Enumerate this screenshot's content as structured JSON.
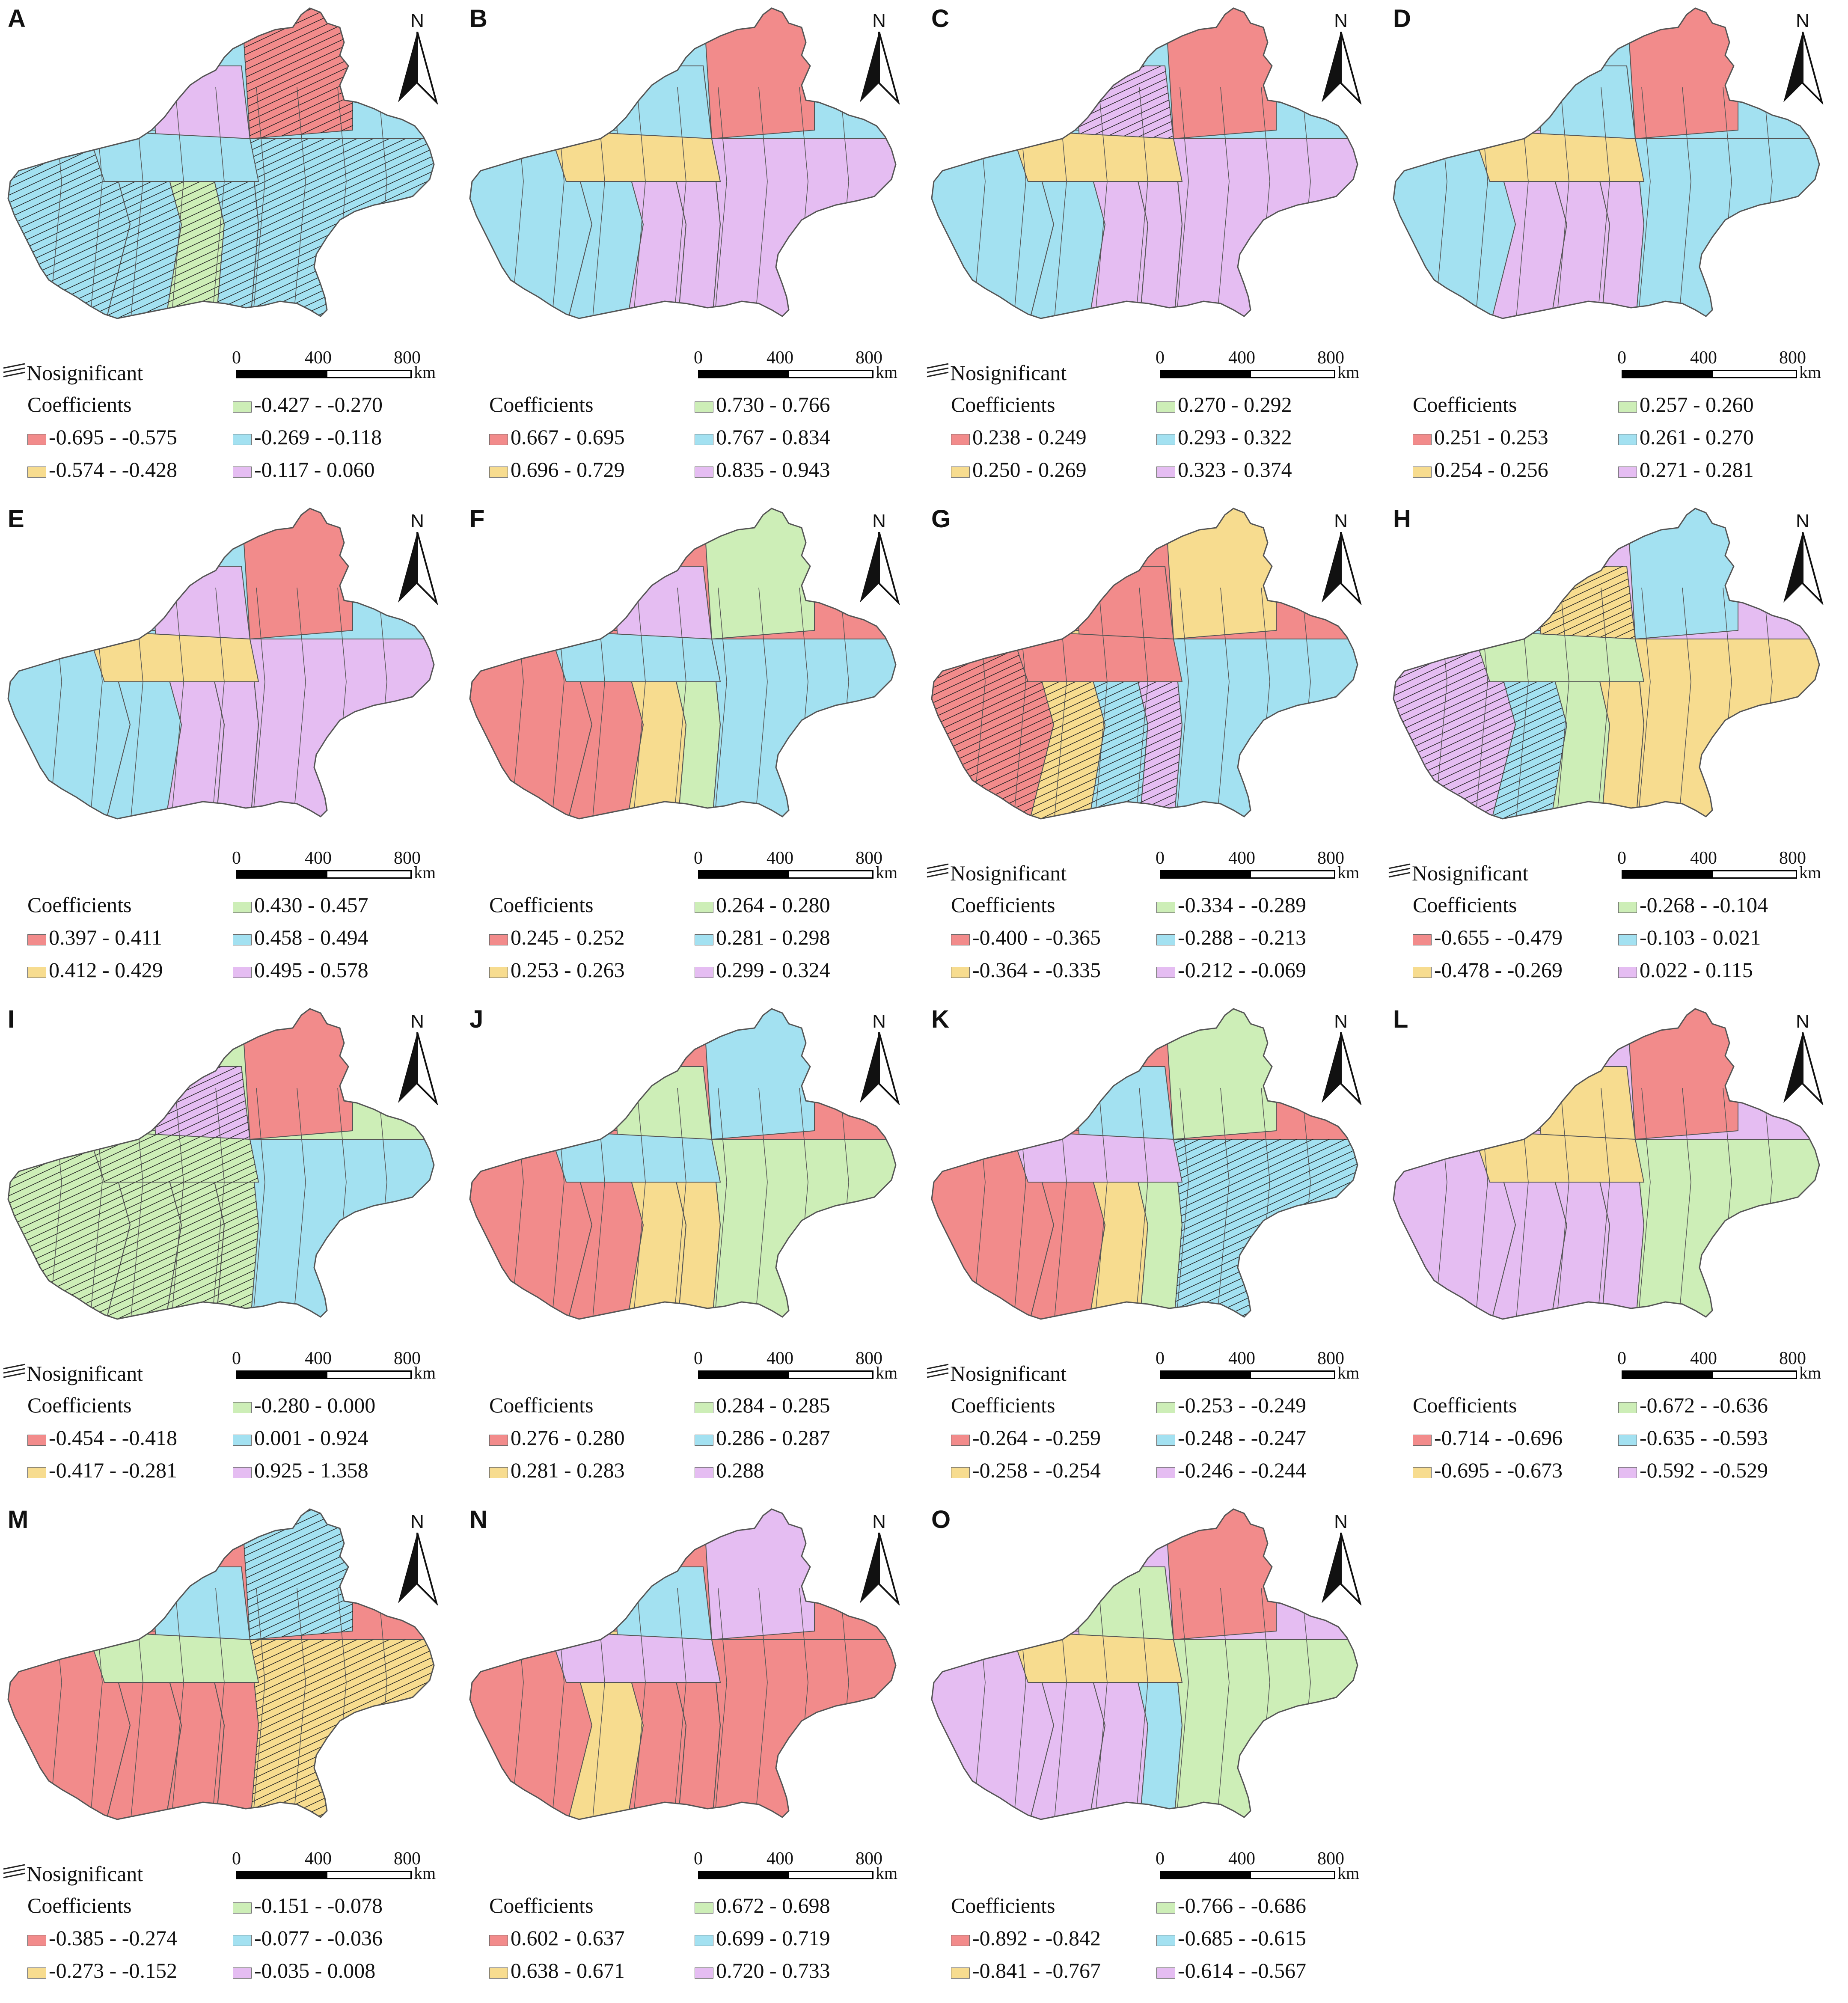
{
  "figure": {
    "nosig_label": "Nosignificant",
    "coef_title": "Coefficients",
    "scale_ticks": [
      "0",
      "400",
      "800"
    ],
    "scale_unit": "km",
    "north_label": "N",
    "colors": {
      "red": "#f28b8b",
      "yellow": "#f7dc8f",
      "green": "#cdeeb7",
      "blue": "#a3e1f1",
      "purple": "#e5bdf2",
      "outline": "#555555"
    }
  },
  "panels": [
    {
      "id": "A",
      "nosig": true,
      "legend": [
        "-0.695 - -0.575",
        "-0.574 - -0.428",
        "-0.427 - -0.270",
        "-0.269 - -0.118",
        "-0.117 - 0.060"
      ]
    },
    {
      "id": "B",
      "nosig": false,
      "legend": [
        "0.667 - 0.695",
        "0.696 - 0.729",
        "0.730 - 0.766",
        "0.767 - 0.834",
        "0.835 - 0.943"
      ]
    },
    {
      "id": "C",
      "nosig": true,
      "legend": [
        "0.238 - 0.249",
        "0.250 - 0.269",
        "0.270 - 0.292",
        "0.293 - 0.322",
        "0.323 - 0.374"
      ]
    },
    {
      "id": "D",
      "nosig": false,
      "legend": [
        "0.251 - 0.253",
        "0.254 - 0.256",
        "0.257 - 0.260",
        "0.261 - 0.270",
        "0.271 - 0.281"
      ]
    },
    {
      "id": "E",
      "nosig": false,
      "legend": [
        "0.397 - 0.411",
        "0.412 - 0.429",
        "0.430 - 0.457",
        "0.458 - 0.494",
        "0.495 - 0.578"
      ]
    },
    {
      "id": "F",
      "nosig": false,
      "legend": [
        "0.245 - 0.252",
        "0.253 - 0.263",
        "0.264 - 0.280",
        "0.281 - 0.298",
        "0.299 - 0.324"
      ]
    },
    {
      "id": "G",
      "nosig": true,
      "legend": [
        "-0.400 - -0.365",
        "-0.364 - -0.335",
        "-0.334 - -0.289",
        "-0.288 - -0.213",
        "-0.212 - -0.069"
      ]
    },
    {
      "id": "H",
      "nosig": true,
      "legend": [
        "-0.655 - -0.479",
        "-0.478 - -0.269",
        "-0.268 - -0.104",
        "-0.103 - 0.021",
        "0.022 - 0.115"
      ]
    },
    {
      "id": "I",
      "nosig": true,
      "legend": [
        "-0.454 - -0.418",
        "-0.417 - -0.281",
        "-0.280 - 0.000",
        "0.001 - 0.924",
        "0.925 - 1.358"
      ]
    },
    {
      "id": "J",
      "nosig": false,
      "legend": [
        "0.276 - 0.280",
        "0.281 - 0.283",
        "0.284 - 0.285",
        "0.286 - 0.287",
        "0.288"
      ]
    },
    {
      "id": "K",
      "nosig": true,
      "legend": [
        "-0.264 - -0.259",
        "-0.258 - -0.254",
        "-0.253 - -0.249",
        "-0.248 - -0.247",
        "-0.246 - -0.244"
      ]
    },
    {
      "id": "L",
      "nosig": false,
      "legend": [
        "-0.714 - -0.696",
        "-0.695 - -0.673",
        "-0.672 - -0.636",
        "-0.635 - -0.593",
        "-0.592 - -0.529"
      ]
    },
    {
      "id": "M",
      "nosig": true,
      "legend": [
        "-0.385 - -0.274",
        "-0.273 - -0.152",
        "-0.151 - -0.078",
        "-0.077 - -0.036",
        "-0.035 - 0.008"
      ]
    },
    {
      "id": "N",
      "nosig": false,
      "legend": [
        "0.602 - 0.637",
        "0.638 - 0.671",
        "0.672 - 0.698",
        "0.699 - 0.719",
        "0.720 - 0.733"
      ]
    },
    {
      "id": "O",
      "nosig": false,
      "legend": [
        "-0.892 - -0.842",
        "-0.841 - -0.767",
        "-0.766 - -0.686",
        "-0.685 - -0.615",
        "-0.614 - -0.567"
      ]
    }
  ]
}
